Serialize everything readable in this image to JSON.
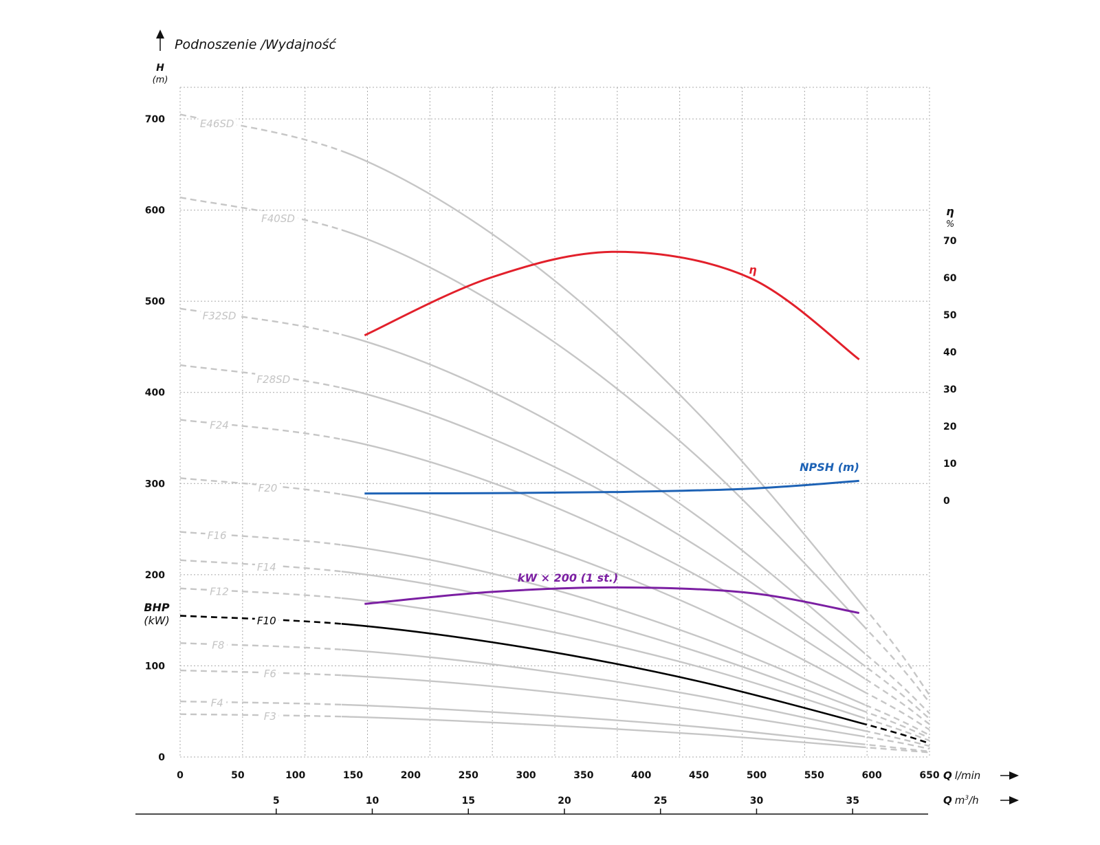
{
  "chart_data": {
    "type": "line",
    "title": "Podnoszenie /Wydajność",
    "y_left": {
      "label": "H",
      "unit": "(m)",
      "ticks": [
        0,
        100,
        200,
        300,
        400,
        500,
        600,
        700
      ],
      "range": [
        0,
        730
      ]
    },
    "y_left_secondary": {
      "label": "BHP",
      "unit": "(kW)"
    },
    "y_right": {
      "label": "η",
      "unit": "%",
      "ticks": [
        0,
        10,
        20,
        30,
        40,
        50,
        60,
        70
      ]
    },
    "x_primary": {
      "label": "Q",
      "unit": "l/min",
      "ticks": [
        0,
        50,
        100,
        150,
        200,
        250,
        300,
        350,
        400,
        450,
        500,
        550,
        600,
        650
      ],
      "range": [
        0,
        650
      ]
    },
    "x_secondary": {
      "label": "Q",
      "unit": "m³/h",
      "unit_base": "m",
      "unit_sup": "3",
      "unit_tail": "/h",
      "ticks": [
        5,
        10,
        15,
        20,
        25,
        30,
        35
      ]
    },
    "grid": true,
    "pump_curves": {
      "q": [
        0,
        150,
        300,
        450,
        600,
        650
      ],
      "recommended_range_lpm": [
        140,
        594
      ],
      "series": [
        {
          "name": "E46SD",
          "values": [
            705,
            660,
            547,
            376,
            154,
            68
          ]
        },
        {
          "name": "F40SD",
          "values": [
            614,
            574,
            476,
            328,
            134,
            60
          ]
        },
        {
          "name": "F32SD",
          "values": [
            492,
            460,
            382,
            263,
            107,
            48
          ]
        },
        {
          "name": "F28SD",
          "values": [
            430,
            402,
            333,
            230,
            94,
            42
          ]
        },
        {
          "name": "F24",
          "values": [
            370,
            346,
            287,
            198,
            81,
            36
          ]
        },
        {
          "name": "F20",
          "values": [
            306,
            286,
            237,
            163,
            67,
            30
          ]
        },
        {
          "name": "F16",
          "values": [
            247,
            231,
            192,
            132,
            54,
            24
          ]
        },
        {
          "name": "F14",
          "values": [
            216,
            202,
            168,
            115,
            47,
            21
          ]
        },
        {
          "name": "F12",
          "values": [
            185,
            173,
            143,
            99,
            40,
            18
          ]
        },
        {
          "name": "F10",
          "values": [
            155,
            145,
            120,
            83,
            34,
            15
          ],
          "highlight": true
        },
        {
          "name": "F8",
          "values": [
            125,
            117,
            97,
            67,
            27,
            12
          ]
        },
        {
          "name": "F6",
          "values": [
            95,
            89,
            74,
            51,
            21,
            9
          ]
        },
        {
          "name": "F4",
          "values": [
            61,
            57,
            47,
            33,
            13,
            6
          ]
        },
        {
          "name": "F3",
          "values": [
            47,
            44,
            36,
            25,
            10,
            5
          ]
        }
      ]
    },
    "efficiency": {
      "name": "η",
      "axis": "right",
      "q": [
        160,
        269,
        379,
        494,
        589
      ],
      "values": [
        44.5,
        60,
        67,
        60,
        38
      ],
      "color": "#e2202b"
    },
    "npsh": {
      "name": "NPSH (m)",
      "axis": "right",
      "q": [
        160,
        269,
        379,
        494,
        589
      ],
      "values": [
        1.9,
        2.0,
        2.3,
        3.2,
        5.3
      ],
      "color": "#1d62b5"
    },
    "power": {
      "name": "kW × 200 (1 st.)",
      "axis": "left",
      "q": [
        160,
        269,
        379,
        494,
        589
      ],
      "values": [
        168,
        181,
        186,
        180,
        158
      ],
      "color": "#7b1fa2"
    },
    "colors": {
      "curve": "#c6c6c6",
      "highlight": "#000000",
      "grid": "#a8a8a8"
    }
  }
}
